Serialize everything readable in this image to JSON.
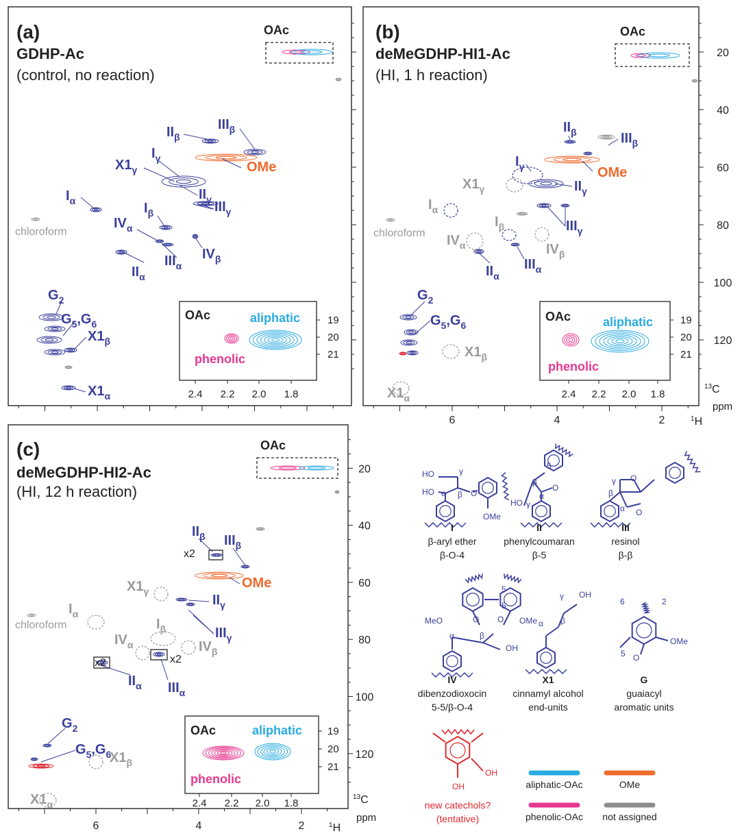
{
  "panels": [
    {
      "label": "(a)",
      "title": "GDHP-Ac",
      "subtitle": "(control, no reaction)",
      "oac": "OAc",
      "chloroform": "chloroform",
      "peaks": [
        [
          "II",
          "β"
        ],
        [
          "III",
          "β"
        ],
        [
          "I",
          "γ"
        ],
        [
          "X1",
          "γ"
        ],
        [
          "OMe"
        ],
        [
          "II",
          "γ"
        ],
        [
          "III",
          "γ"
        ],
        [
          "I",
          "α"
        ],
        [
          "IV",
          "α"
        ],
        [
          "I",
          "β"
        ],
        [
          "III",
          "α"
        ],
        [
          "IV",
          "β"
        ],
        [
          "II",
          "α"
        ],
        [
          "G",
          "2"
        ],
        [
          "G",
          "5",
          ",G",
          "6"
        ],
        [
          "X1",
          "β"
        ],
        [
          "X1",
          "α"
        ]
      ],
      "inset": {
        "title": "OAc",
        "aliphatic": "aliphatic",
        "phenolic": "phenolic",
        "y_ticks": [
          "19",
          "20",
          "21"
        ],
        "x_ticks": [
          "2.4",
          "2.2",
          "2.0",
          "1.8"
        ]
      }
    },
    {
      "label": "(b)",
      "title": "deMeGDHP-HI1-Ac",
      "subtitle": "(HI, 1 h reaction)",
      "oac": "OAc",
      "chloroform": "chloroform",
      "peaks": [
        [
          "II",
          "β"
        ],
        [
          "III",
          "β"
        ],
        [
          "I",
          "γ"
        ],
        [
          "X1",
          "γ"
        ],
        [
          "OMe"
        ],
        [
          "II",
          "γ"
        ],
        [
          "III",
          "γ"
        ],
        [
          "I",
          "α"
        ],
        [
          "IV",
          "α"
        ],
        [
          "I",
          "β"
        ],
        [
          "III",
          "α"
        ],
        [
          "IV",
          "β"
        ],
        [
          "II",
          "α"
        ],
        [
          "G",
          "2"
        ],
        [
          "G",
          "5",
          ",G",
          "6"
        ],
        [
          "X1",
          "β"
        ],
        [
          "X1",
          "α"
        ]
      ],
      "inset": {
        "title": "OAc",
        "aliphatic": "aliphatic",
        "phenolic": "phenolic",
        "y_ticks": [
          "19",
          "20",
          "21"
        ],
        "x_ticks": [
          "2.4",
          "2.2",
          "2.0",
          "1.8"
        ]
      }
    },
    {
      "label": "(c)",
      "title": "deMeGDHP-HI2-Ac",
      "subtitle": "(HI, 12 h reaction)",
      "oac": "OAc",
      "chloroform": "chloroform",
      "peaks": [
        [
          "II",
          "β"
        ],
        [
          "III",
          "β"
        ],
        [
          "X1",
          "γ"
        ],
        [
          "OMe"
        ],
        [
          "II",
          "γ"
        ],
        [
          "III",
          "γ"
        ],
        [
          "I",
          "α"
        ],
        [
          "IV",
          "α"
        ],
        [
          "I",
          "β"
        ],
        [
          "III",
          "α"
        ],
        [
          "IV",
          "β"
        ],
        [
          "II",
          "α"
        ],
        [
          "G",
          "2"
        ],
        [
          "G",
          "5",
          ",G",
          "6"
        ],
        [
          "X1",
          "β"
        ],
        [
          "X1",
          "α"
        ]
      ],
      "magnify": [
        "x2",
        "x2",
        "x2"
      ],
      "inset": {
        "title": "OAc",
        "aliphatic": "aliphatic",
        "phenolic": "phenolic",
        "y_ticks": [
          "19",
          "20",
          "21"
        ],
        "x_ticks": [
          "2.4",
          "2.2",
          "2.0",
          "1.8"
        ]
      }
    }
  ],
  "y_axis_ticks": [
    "20",
    "40",
    "60",
    "80",
    "100",
    "120"
  ],
  "x_axis_ticks": [
    "6",
    "4",
    "2"
  ],
  "carbon_label": [
    "13",
    "C"
  ],
  "unit": "ppm",
  "proton_label": [
    "1",
    "H"
  ],
  "structures": [
    {
      "id": "I",
      "name": "β-aryl ether",
      "linkage": "β-O-4",
      "atoms": [
        "HO",
        "γ",
        "HO",
        "α",
        "β",
        "O",
        "OMe"
      ]
    },
    {
      "id": "II",
      "name": "phenylcoumaran",
      "linkage": "β-5",
      "atoms": [
        "5",
        "β",
        "HO",
        "γ",
        "α",
        "O"
      ]
    },
    {
      "id": "III",
      "name": "resinol",
      "linkage": "β-β",
      "atoms": [
        "γ",
        "O",
        "β",
        "α",
        "O"
      ]
    },
    {
      "id": "IV",
      "name": "dibenzodioxocin",
      "linkage": "5-5/β-O-4",
      "atoms": [
        "5",
        "5",
        "MeO",
        "O",
        "O",
        "OMe",
        "α",
        "β",
        "OH"
      ]
    },
    {
      "id": "X1",
      "name": "cinnamyl alcohol",
      "linkage": "end-units",
      "atoms": [
        "γ",
        "OH",
        "α",
        "β"
      ]
    },
    {
      "id": "G",
      "name": "guaiacyl",
      "linkage": "aromatic units",
      "atoms": [
        "6",
        "2",
        "OMe",
        "5",
        "O"
      ]
    }
  ],
  "catechol": {
    "name": "new catechols?",
    "note": "(tentative)",
    "atoms": [
      "OH",
      "OH"
    ]
  },
  "legend": [
    {
      "name": "aliphatic-OAc",
      "color": "#29abe2"
    },
    {
      "name": "OMe",
      "color": "#ee6a2c"
    },
    {
      "name": "phenolic-OAc",
      "color": "#e6388f"
    },
    {
      "name": "not assigned",
      "color": "#8c8c8c"
    }
  ]
}
